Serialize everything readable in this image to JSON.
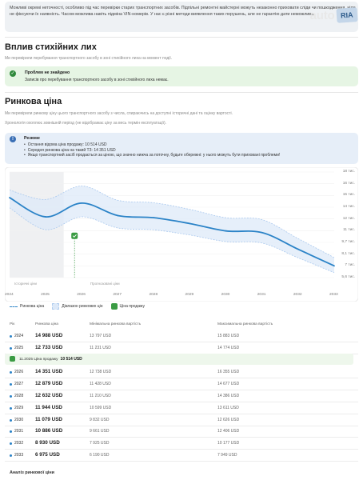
{
  "intro": {
    "text": "Можливі окремі неточності, особливо під час перевірки старих транспортних засобів. Підпільні ремонтні майстерні можуть незаконно приховати сліди чи пошкодження, ніде не фіксуючи їх наявність. Часом можлива навіть підміна VIN-номерів. У нас є різні методи виявлення таких порушень, але не гарантію дати неможливо."
  },
  "logo": {
    "auto": "auto",
    "ria": "RIA"
  },
  "disaster": {
    "title": "Вплив стихійних лих",
    "subtitle": "Ми перевірили перебування транспортного засобу в зоні стихійного лиха на момент події.",
    "alert_title": "Проблем не знайдено",
    "alert_text": "Записів про перебування транспортного засобу в зоні стихійного лиха немає."
  },
  "market": {
    "title": "Ринкова ціна",
    "subtitle1": "Ми перевірили ринкову ціну цього транспортного засобу з числа, спираючись на доступні історичні дані та оцінку вартості.",
    "subtitle2": "Хронологія охоплює зовнішній період (не відображає ціну за весь термін експлуатації).",
    "summary_title": "Резюме",
    "summary_items": [
      "Остання відома ціна продажу: 10 514 USD",
      "Середня ринкова ціна на такий ТЗ: 14 351 USD",
      "Якщо транспортний засіб продається за ціною, що значно нижча за поточну, будьте обережні: у нього можуть бути приховані проблеми!"
    ]
  },
  "chart_data": {
    "type": "line",
    "x": [
      2024,
      2025,
      2026,
      2027,
      2028,
      2029,
      2030,
      2031,
      2032,
      2033
    ],
    "xticks": [
      "2024",
      "2025",
      "2026",
      "2027",
      "2028",
      "2029",
      "2030",
      "2031",
      "2032",
      "2033"
    ],
    "series": [
      {
        "name": "Ринкова ціна",
        "values": [
          14988,
          12733,
          14351,
          12879,
          12632,
          11944,
          11079,
          10886,
          8930,
          6975
        ]
      }
    ],
    "band": {
      "name": "Діапазон ринкових цін",
      "min": [
        13797,
        11231,
        12738,
        11428,
        11210,
        10599,
        9832,
        9661,
        7925,
        6190
      ],
      "max": [
        15883,
        14774,
        16355,
        14677,
        14386,
        13611,
        12626,
        12406,
        10177,
        7949
      ]
    },
    "sale": {
      "name": "Ціна продажу",
      "x": 2025.8,
      "y": 10514
    },
    "ytick_labels": [
      "18 тис.",
      "16 тис.",
      "15 тис.",
      "14 тис.",
      "12 тис.",
      "11 тис.",
      "9,7 тис.",
      "8,1 тис.",
      "7 тис.",
      "5,6 тис."
    ],
    "ylim": [
      5600,
      18000
    ],
    "period_labels": [
      "Історичні ціни",
      "Прогнозовані ціни"
    ],
    "grid": true,
    "legend_position": "bottom-left"
  },
  "table": {
    "headers": [
      "Рік",
      "Ринкова ціна",
      "Мінімальна ринкова вартість",
      "Максимальна ринкова вартість"
    ],
    "rows": [
      {
        "year": "2024",
        "price": "14 988 USD",
        "min": "13 797 USD",
        "max": "15 883 USD"
      },
      {
        "year": "2025",
        "price": "12 733 USD",
        "min": "11 231 USD",
        "max": "14 774 USD"
      },
      {
        "year": "2026",
        "price": "14 351 USD",
        "min": "12 738 USD",
        "max": "16 355 USD"
      },
      {
        "year": "2027",
        "price": "12 879 USD",
        "min": "11 428 USD",
        "max": "14 677 USD"
      },
      {
        "year": "2028",
        "price": "12 632 USD",
        "min": "11 210 USD",
        "max": "14 386 USD"
      },
      {
        "year": "2029",
        "price": "11 944 USD",
        "min": "10 599 USD",
        "max": "13 611 USD"
      },
      {
        "year": "2030",
        "price": "11 079 USD",
        "min": "9 832 USD",
        "max": "12 626 USD"
      },
      {
        "year": "2031",
        "price": "10 886 USD",
        "min": "9 661 USD",
        "max": "12 406 USD"
      },
      {
        "year": "2032",
        "price": "8 930 USD",
        "min": "7 925 USD",
        "max": "10 177 USD"
      },
      {
        "year": "2033",
        "price": "6 975 USD",
        "min": "6 190 USD",
        "max": "7 949 USD"
      }
    ],
    "sale_row": {
      "date": "11.2025 Ціна продажу",
      "price": "10 514 USD"
    }
  },
  "analysis": {
    "title": "Аналіз ринкової ціни"
  },
  "colors": {
    "line": "#2b83c7",
    "band": "#dde9f8",
    "sale": "#3a9b43"
  }
}
